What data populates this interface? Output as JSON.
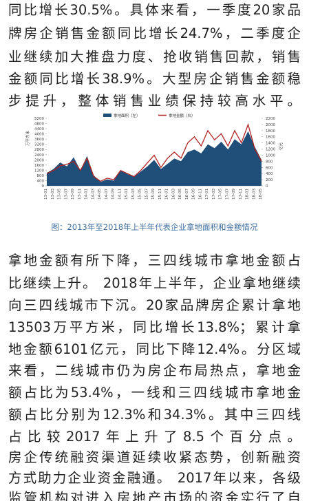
{
  "paragraphs": [
    {
      "lines": [
        "同比增长30.5%。具体来看，一季度20家品",
        "牌房企销售金额同比增长24.7%，二季度企",
        "业继续加大推盘力度、抢收销售回款，销售",
        "金额同比增长38.9%。大型房企销售金额稳",
        "步提升，整体销售业绩保持较高水平。"
      ]
    },
    {
      "lines": [
        "拿地金额有所下降，三四线城市拿地金额占",
        "比继续上升。 2018年上半年，企业拿地继续",
        "向三四线城市下沉。20家品牌房企累计拿地",
        "13503万平方米，同比增长13.8%；累计拿",
        "地金额6101亿元，同比下降12.4%。分区域",
        "来看，二线城市仍为房企布局热点，拿地金",
        "额占比为53.4%，一线和三四线城市拿地金",
        "额占比分别为12.3%和34.3%。其中三四线",
        "占比较2017年上升了8.5个百分点。"
      ]
    },
    {
      "lines": [
        "房企传统融资渠道延续收紧态势，创新融资",
        "方式助力企业资金融通。 2017年以来，各级",
        "监管机构对进入房地产市场的资金实行了自"
      ]
    }
  ],
  "caption": "图：2013年至2018年上半年代表企业拿地面积和金额情况",
  "chart_data": {
    "type": "area-line",
    "y_label": "万平方米",
    "y2_label": "亿元",
    "categories": [
      "13-01",
      "13-03",
      "13-05",
      "13-07",
      "13-09",
      "13-11",
      "14-01",
      "14-03",
      "14-05",
      "14-07",
      "14-09",
      "14-11",
      "15-01",
      "15-03",
      "15-05",
      "15-07",
      "15-09",
      "15-11",
      "16-01",
      "16-03",
      "16-05",
      "16-07",
      "16-09",
      "16-11",
      "17-01",
      "17-03",
      "17-05",
      "17-07",
      "17-09",
      "17-11",
      "18-01",
      "18-03",
      "18-05"
    ],
    "series": [
      {
        "name": "拿地面积（左）",
        "color": "#1f4e79",
        "values": [
          1000,
          1300,
          1800,
          1500,
          2200,
          1200,
          2300,
          800,
          300,
          500,
          400,
          1200,
          900,
          700,
          1100,
          1500,
          2000,
          1300,
          1700,
          2100,
          1900,
          2600,
          2800,
          2500,
          3200,
          2900,
          3400,
          2800,
          3600,
          3200,
          4200,
          3000,
          2000
        ]
      },
      {
        "name": "拿地金额（右）",
        "color": "#b22222",
        "axis": "y2",
        "values": [
          400,
          500,
          650,
          700,
          800,
          500,
          900,
          300,
          150,
          250,
          200,
          500,
          400,
          300,
          500,
          750,
          1000,
          600,
          900,
          1100,
          900,
          1400,
          1600,
          1300,
          1800,
          1500,
          1700,
          1300,
          1800,
          1400,
          2000,
          1200,
          800
        ]
      }
    ],
    "ylim": [
      0,
      5200
    ],
    "yticks": [
      0,
      400,
      800,
      1200,
      1600,
      2000,
      2400,
      2800,
      3200,
      3600,
      4000,
      4400,
      4800,
      5200
    ],
    "y2lim": [
      0,
      2200
    ],
    "y2ticks": [
      0,
      200,
      400,
      600,
      800,
      1000,
      1200,
      1400,
      1600,
      1800,
      2000,
      2200
    ]
  }
}
